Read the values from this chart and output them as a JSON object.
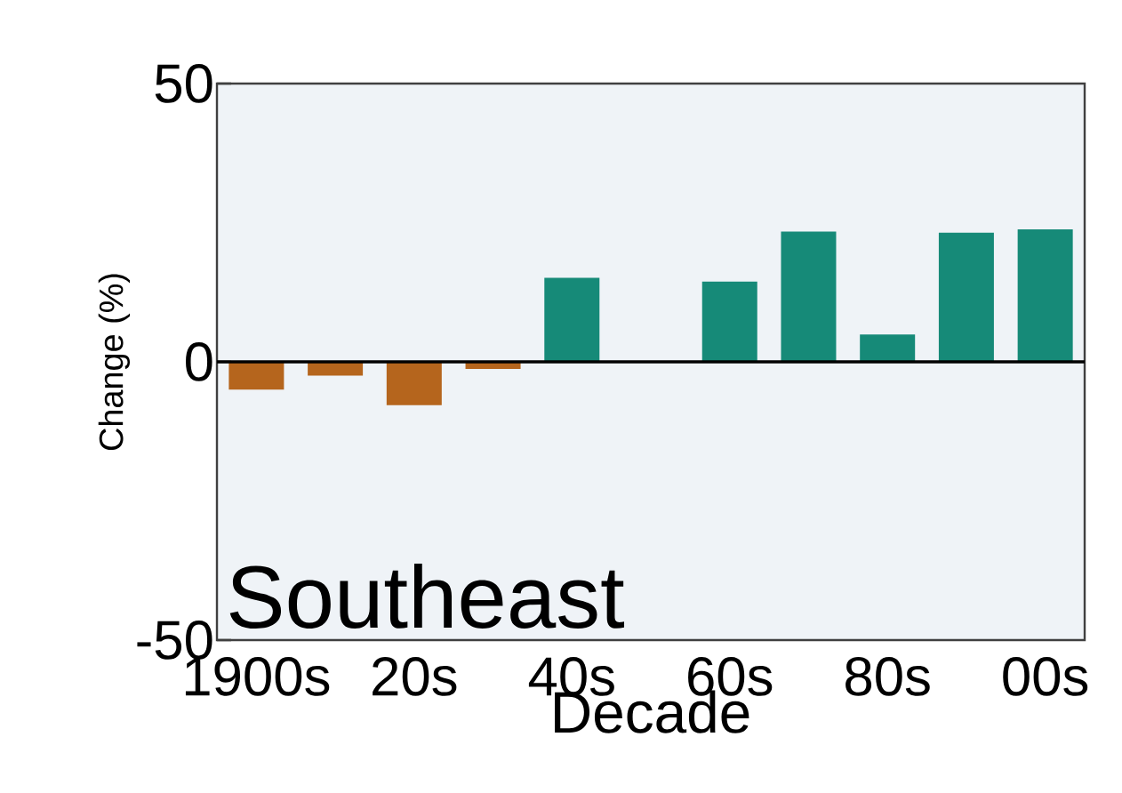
{
  "chart_data": {
    "type": "bar",
    "xlabel": "Decade",
    "ylabel": "Change (%)",
    "annotations": [
      "Southeast"
    ],
    "categories": [
      "1900s",
      null,
      "20s",
      null,
      "40s",
      null,
      "60s",
      null,
      "80s",
      null,
      "00s"
    ],
    "values": [
      -5.0,
      -2.5,
      -7.8,
      -1.3,
      15.1,
      0,
      14.4,
      23.4,
      4.9,
      23.2,
      23.8
    ],
    "colors": [
      "#b5651d",
      "#b5651d",
      "#b5651d",
      "#b5651d",
      "#168a78",
      "#168a78",
      "#168a78",
      "#168a78",
      "#168a78",
      "#168a78",
      "#168a78"
    ],
    "ylim": [
      -50,
      50
    ],
    "yticks": [
      -50,
      0,
      50
    ],
    "ref_lines": [
      {
        "axis": "y",
        "value": 0,
        "color": "#000000"
      }
    ],
    "grid": false
  }
}
